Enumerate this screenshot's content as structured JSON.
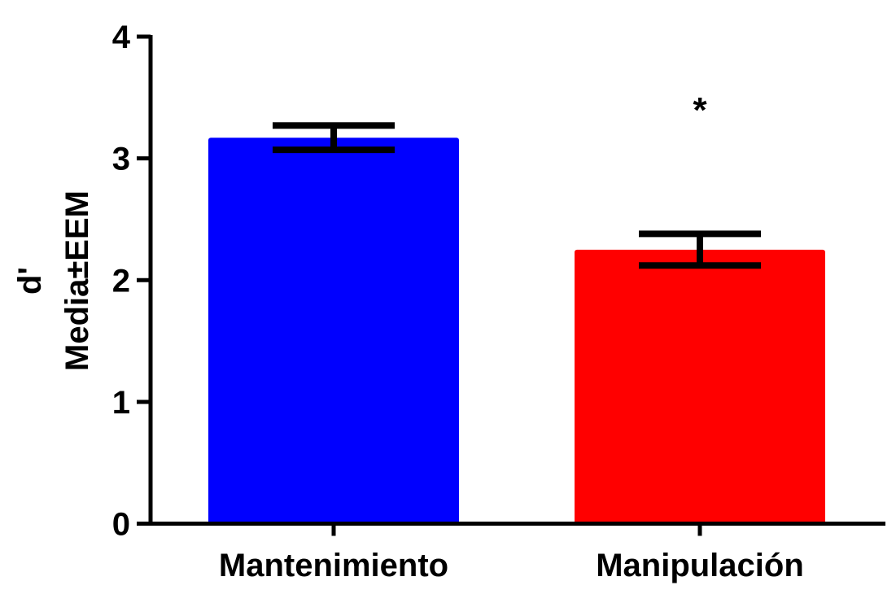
{
  "chart_data": {
    "type": "bar",
    "categories": [
      "Mantenimiento",
      "Manipulación"
    ],
    "values": [
      3.17,
      2.25
    ],
    "errors": [
      0.1,
      0.13
    ],
    "colors": [
      "#0000ff",
      "#ff0000"
    ],
    "ylabel_line1": "d'",
    "ylabel_line2": "Media±EEM",
    "ylim": [
      0,
      4
    ],
    "yticks": [
      0,
      1,
      2,
      3,
      4
    ],
    "grid": false,
    "annotations": [
      {
        "category": "Manipulación",
        "text": "*"
      }
    ]
  }
}
